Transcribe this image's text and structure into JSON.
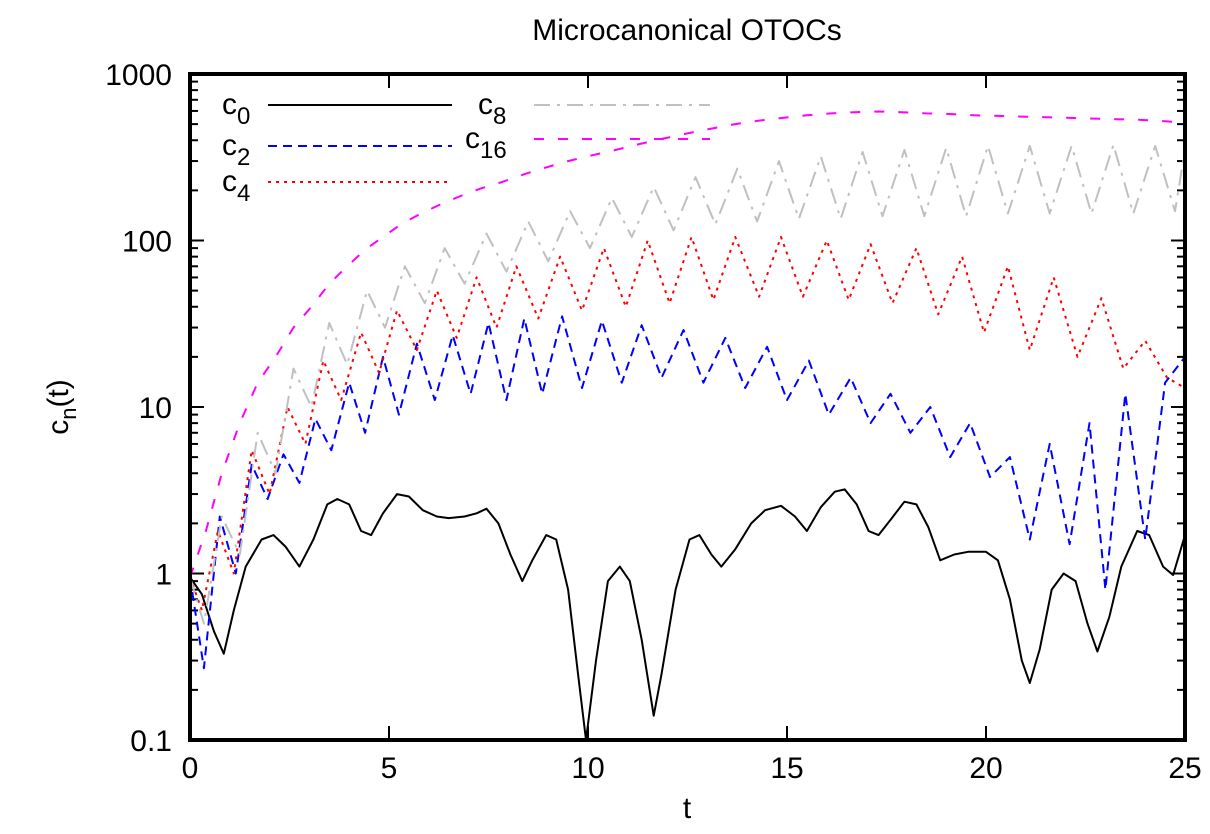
{
  "chart_data": {
    "type": "line",
    "title": "Microcanonical OTOCs",
    "xlabel": "t",
    "ylabel": {
      "base": "c",
      "sub": "n",
      "suffix": "(t)"
    },
    "xlim": [
      0,
      25
    ],
    "ylim": [
      0.1,
      1000
    ],
    "yscale": "log",
    "grid": false,
    "legend_position": "top-left",
    "x_ticks": [
      0,
      5,
      10,
      15,
      20,
      25
    ],
    "y_ticks": [
      0.1,
      1,
      10,
      100,
      1000
    ],
    "x_tick_labels": [
      "0",
      "5",
      "10",
      "15",
      "20",
      "25"
    ],
    "y_tick_labels": [
      "0.1",
      "1",
      "10",
      "100",
      "1000"
    ],
    "series": [
      {
        "name": "c0",
        "label_base": "c",
        "label_sub": "0",
        "color": "#000000",
        "dash": "solid",
        "points": [
          [
            0,
            0.95
          ],
          [
            0.3,
            0.75
          ],
          [
            0.6,
            0.45
          ],
          [
            0.85,
            0.33
          ],
          [
            1.1,
            0.6
          ],
          [
            1.4,
            1.1
          ],
          [
            1.8,
            1.6
          ],
          [
            2.1,
            1.7
          ],
          [
            2.4,
            1.45
          ],
          [
            2.75,
            1.1
          ],
          [
            3.1,
            1.6
          ],
          [
            3.45,
            2.6
          ],
          [
            3.7,
            2.8
          ],
          [
            4.0,
            2.6
          ],
          [
            4.3,
            1.8
          ],
          [
            4.55,
            1.7
          ],
          [
            4.85,
            2.3
          ],
          [
            5.2,
            3.0
          ],
          [
            5.5,
            2.9
          ],
          [
            5.85,
            2.4
          ],
          [
            6.2,
            2.2
          ],
          [
            6.5,
            2.15
          ],
          [
            6.9,
            2.2
          ],
          [
            7.2,
            2.3
          ],
          [
            7.45,
            2.45
          ],
          [
            7.75,
            2.0
          ],
          [
            8.05,
            1.3
          ],
          [
            8.35,
            0.9
          ],
          [
            8.6,
            1.2
          ],
          [
            8.95,
            1.7
          ],
          [
            9.2,
            1.6
          ],
          [
            9.5,
            0.8
          ],
          [
            9.75,
            0.25
          ],
          [
            9.95,
            0.1
          ],
          [
            10.2,
            0.3
          ],
          [
            10.5,
            0.9
          ],
          [
            10.8,
            1.1
          ],
          [
            11.05,
            0.9
          ],
          [
            11.35,
            0.4
          ],
          [
            11.65,
            0.14
          ],
          [
            11.85,
            0.25
          ],
          [
            12.2,
            0.8
          ],
          [
            12.55,
            1.6
          ],
          [
            12.8,
            1.7
          ],
          [
            13.1,
            1.3
          ],
          [
            13.35,
            1.1
          ],
          [
            13.7,
            1.4
          ],
          [
            14.1,
            2.0
          ],
          [
            14.45,
            2.4
          ],
          [
            14.85,
            2.55
          ],
          [
            15.2,
            2.2
          ],
          [
            15.5,
            1.8
          ],
          [
            15.85,
            2.5
          ],
          [
            16.2,
            3.1
          ],
          [
            16.45,
            3.2
          ],
          [
            16.75,
            2.6
          ],
          [
            17.05,
            1.8
          ],
          [
            17.3,
            1.7
          ],
          [
            17.6,
            2.1
          ],
          [
            17.95,
            2.7
          ],
          [
            18.25,
            2.6
          ],
          [
            18.55,
            1.9
          ],
          [
            18.85,
            1.2
          ],
          [
            19.2,
            1.3
          ],
          [
            19.55,
            1.35
          ],
          [
            20.0,
            1.35
          ],
          [
            20.3,
            1.2
          ],
          [
            20.6,
            0.7
          ],
          [
            20.9,
            0.3
          ],
          [
            21.1,
            0.22
          ],
          [
            21.35,
            0.35
          ],
          [
            21.65,
            0.8
          ],
          [
            21.95,
            1.0
          ],
          [
            22.25,
            0.9
          ],
          [
            22.55,
            0.5
          ],
          [
            22.8,
            0.34
          ],
          [
            23.1,
            0.55
          ],
          [
            23.4,
            1.1
          ],
          [
            23.8,
            1.8
          ],
          [
            24.1,
            1.7
          ],
          [
            24.45,
            1.1
          ],
          [
            24.7,
            0.98
          ],
          [
            25.0,
            1.7
          ]
        ]
      },
      {
        "name": "c2",
        "label_base": "c",
        "label_sub": "2",
        "color": "#0000ff",
        "dash": "dashed",
        "points": [
          [
            0,
            0.95
          ],
          [
            0.35,
            0.27
          ],
          [
            0.75,
            2.2
          ],
          [
            1.15,
            1.0
          ],
          [
            1.55,
            4.5
          ],
          [
            1.95,
            2.8
          ],
          [
            2.35,
            5.2
          ],
          [
            2.75,
            3.5
          ],
          [
            3.15,
            8.5
          ],
          [
            3.55,
            5.5
          ],
          [
            4.0,
            14
          ],
          [
            4.4,
            7
          ],
          [
            4.85,
            20
          ],
          [
            5.25,
            9
          ],
          [
            5.7,
            24
          ],
          [
            6.15,
            11
          ],
          [
            6.6,
            27
          ],
          [
            7.05,
            12
          ],
          [
            7.5,
            32
          ],
          [
            7.95,
            11
          ],
          [
            8.4,
            34
          ],
          [
            8.85,
            12
          ],
          [
            9.35,
            35
          ],
          [
            9.85,
            13
          ],
          [
            10.35,
            33
          ],
          [
            10.85,
            14
          ],
          [
            11.35,
            31
          ],
          [
            11.85,
            15
          ],
          [
            12.4,
            29
          ],
          [
            12.9,
            14
          ],
          [
            13.45,
            26
          ],
          [
            13.95,
            13
          ],
          [
            14.5,
            23
          ],
          [
            15.0,
            11
          ],
          [
            15.55,
            19
          ],
          [
            16.05,
            9
          ],
          [
            16.6,
            15
          ],
          [
            17.1,
            8
          ],
          [
            17.6,
            12
          ],
          [
            18.1,
            7
          ],
          [
            18.6,
            10
          ],
          [
            19.1,
            5
          ],
          [
            19.6,
            8
          ],
          [
            20.1,
            3.8
          ],
          [
            20.6,
            5
          ],
          [
            21.1,
            1.6
          ],
          [
            21.6,
            6
          ],
          [
            22.1,
            1.5
          ],
          [
            22.6,
            8
          ],
          [
            23.0,
            0.8
          ],
          [
            23.5,
            12
          ],
          [
            24.0,
            1.6
          ],
          [
            24.5,
            14
          ],
          [
            25.0,
            20
          ]
        ]
      },
      {
        "name": "c4",
        "label_base": "c",
        "label_sub": "4",
        "color": "#ff0000",
        "dash": "dotted",
        "points": [
          [
            0,
            0.95
          ],
          [
            0.3,
            0.6
          ],
          [
            0.7,
            1.8
          ],
          [
            1.1,
            1.0
          ],
          [
            1.55,
            5.5
          ],
          [
            2.0,
            3.0
          ],
          [
            2.45,
            10
          ],
          [
            2.9,
            6
          ],
          [
            3.35,
            19
          ],
          [
            3.8,
            11
          ],
          [
            4.3,
            28
          ],
          [
            4.75,
            16
          ],
          [
            5.2,
            38
          ],
          [
            5.7,
            22
          ],
          [
            6.2,
            50
          ],
          [
            6.7,
            26
          ],
          [
            7.2,
            60
          ],
          [
            7.7,
            30
          ],
          [
            8.2,
            70
          ],
          [
            8.75,
            34
          ],
          [
            9.3,
            80
          ],
          [
            9.85,
            38
          ],
          [
            10.4,
            90
          ],
          [
            10.95,
            40
          ],
          [
            11.5,
            100
          ],
          [
            12.05,
            42
          ],
          [
            12.6,
            105
          ],
          [
            13.15,
            44
          ],
          [
            13.7,
            105
          ],
          [
            14.3,
            46
          ],
          [
            14.85,
            105
          ],
          [
            15.4,
            46
          ],
          [
            16.0,
            100
          ],
          [
            16.55,
            44
          ],
          [
            17.1,
            95
          ],
          [
            17.65,
            42
          ],
          [
            18.25,
            90
          ],
          [
            18.8,
            36
          ],
          [
            19.4,
            80
          ],
          [
            19.95,
            28
          ],
          [
            20.55,
            70
          ],
          [
            21.1,
            22
          ],
          [
            21.7,
            60
          ],
          [
            22.3,
            20
          ],
          [
            22.9,
            45
          ],
          [
            23.45,
            17
          ],
          [
            24.0,
            25
          ],
          [
            24.55,
            15
          ],
          [
            25.0,
            13
          ]
        ]
      },
      {
        "name": "c8",
        "label_base": "c",
        "label_sub": "8",
        "color": "#c0c0c0",
        "dash": "dashdot",
        "points": [
          [
            0,
            0.95
          ],
          [
            0.35,
            0.5
          ],
          [
            0.8,
            2.2
          ],
          [
            1.25,
            1.3
          ],
          [
            1.7,
            7
          ],
          [
            2.15,
            4
          ],
          [
            2.6,
            17
          ],
          [
            3.05,
            10
          ],
          [
            3.5,
            32
          ],
          [
            3.95,
            18
          ],
          [
            4.45,
            50
          ],
          [
            4.9,
            30
          ],
          [
            5.4,
            70
          ],
          [
            5.9,
            42
          ],
          [
            6.4,
            90
          ],
          [
            6.9,
            55
          ],
          [
            7.45,
            110
          ],
          [
            7.95,
            65
          ],
          [
            8.5,
            130
          ],
          [
            9.0,
            75
          ],
          [
            9.55,
            150
          ],
          [
            10.05,
            90
          ],
          [
            10.6,
            180
          ],
          [
            11.1,
            105
          ],
          [
            11.65,
            210
          ],
          [
            12.15,
            115
          ],
          [
            12.7,
            240
          ],
          [
            13.2,
            125
          ],
          [
            13.75,
            270
          ],
          [
            14.25,
            130
          ],
          [
            14.8,
            300
          ],
          [
            15.3,
            135
          ],
          [
            15.85,
            320
          ],
          [
            16.35,
            135
          ],
          [
            16.9,
            340
          ],
          [
            17.4,
            140
          ],
          [
            17.95,
            350
          ],
          [
            18.45,
            140
          ],
          [
            19.0,
            360
          ],
          [
            19.5,
            140
          ],
          [
            20.05,
            370
          ],
          [
            20.55,
            145
          ],
          [
            21.1,
            370
          ],
          [
            21.6,
            145
          ],
          [
            22.15,
            370
          ],
          [
            22.65,
            145
          ],
          [
            23.2,
            375
          ],
          [
            23.7,
            145
          ],
          [
            24.25,
            370
          ],
          [
            24.75,
            150
          ],
          [
            25.0,
            350
          ]
        ]
      },
      {
        "name": "c16",
        "label_base": "c",
        "label_sub": "16",
        "color": "#ff00ff",
        "dash": "longdash",
        "points": [
          [
            0,
            0.95
          ],
          [
            0.4,
            1.8
          ],
          [
            0.8,
            4
          ],
          [
            1.25,
            8
          ],
          [
            1.7,
            14
          ],
          [
            2.15,
            20
          ],
          [
            2.6,
            30
          ],
          [
            3.05,
            40
          ],
          [
            3.5,
            55
          ],
          [
            3.95,
            70
          ],
          [
            4.4,
            88
          ],
          [
            4.85,
            105
          ],
          [
            5.3,
            125
          ],
          [
            5.8,
            145
          ],
          [
            6.3,
            165
          ],
          [
            6.8,
            185
          ],
          [
            7.3,
            205
          ],
          [
            7.85,
            225
          ],
          [
            8.4,
            250
          ],
          [
            8.95,
            275
          ],
          [
            9.5,
            300
          ],
          [
            10.1,
            325
          ],
          [
            10.7,
            350
          ],
          [
            11.3,
            380
          ],
          [
            11.9,
            410
          ],
          [
            12.5,
            440
          ],
          [
            13.1,
            470
          ],
          [
            13.7,
            500
          ],
          [
            14.3,
            525
          ],
          [
            14.9,
            545
          ],
          [
            15.5,
            565
          ],
          [
            16.1,
            580
          ],
          [
            16.7,
            590
          ],
          [
            17.3,
            595
          ],
          [
            17.9,
            590
          ],
          [
            18.5,
            580
          ],
          [
            19.1,
            575
          ],
          [
            19.7,
            565
          ],
          [
            20.3,
            560
          ],
          [
            20.9,
            555
          ],
          [
            21.5,
            550
          ],
          [
            22.1,
            545
          ],
          [
            22.7,
            540
          ],
          [
            23.3,
            535
          ],
          [
            23.9,
            530
          ],
          [
            24.5,
            520
          ],
          [
            25.0,
            510
          ]
        ]
      }
    ]
  }
}
